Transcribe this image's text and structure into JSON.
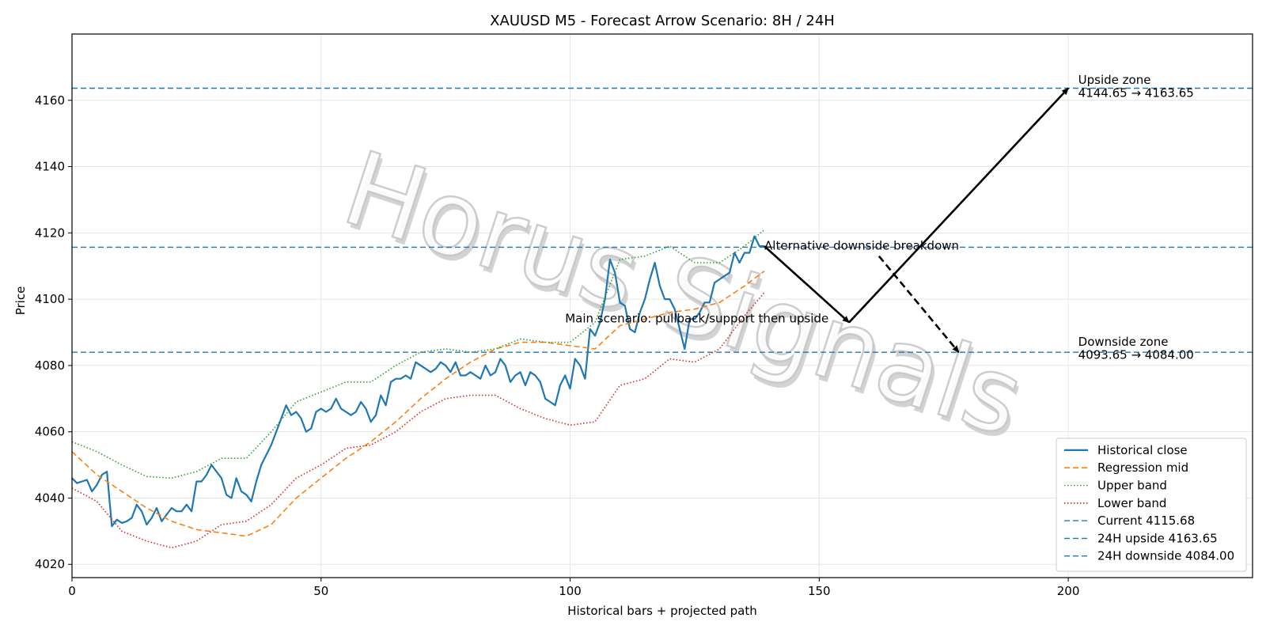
{
  "chart_data": {
    "type": "line",
    "title": "XAUUSD M5 - Forecast Arrow Scenario: 8H / 24H",
    "xlabel": "Historical bars + projected path",
    "ylabel": "Price",
    "xlim": [
      0,
      237
    ],
    "ylim": [
      4016,
      4180
    ],
    "x_ticks": [
      0,
      50,
      100,
      150,
      200
    ],
    "y_ticks": [
      4020,
      4040,
      4060,
      4080,
      4100,
      4120,
      4140,
      4160
    ],
    "grid": true,
    "legend_position": "lower-right",
    "series": [
      {
        "name": "Historical close",
        "style": "solid",
        "color": "#1f77b4",
        "x": [
          0,
          1,
          2,
          3,
          4,
          5,
          6,
          7,
          8,
          9,
          10,
          11,
          12,
          13,
          14,
          15,
          16,
          17,
          18,
          19,
          20,
          21,
          22,
          23,
          24,
          25,
          26,
          27,
          28,
          29,
          30,
          31,
          32,
          33,
          34,
          35,
          36,
          37,
          38,
          39,
          40,
          41,
          42,
          43,
          44,
          45,
          46,
          47,
          48,
          49,
          50,
          51,
          52,
          53,
          54,
          55,
          56,
          57,
          58,
          59,
          60,
          61,
          62,
          63,
          64,
          65,
          66,
          67,
          68,
          69,
          70,
          71,
          72,
          73,
          74,
          75,
          76,
          77,
          78,
          79,
          80,
          81,
          82,
          83,
          84,
          85,
          86,
          87,
          88,
          89,
          90,
          91,
          92,
          93,
          94,
          95,
          96,
          97,
          98,
          99,
          100,
          101,
          102,
          103,
          104,
          105,
          106,
          107,
          108,
          109,
          110,
          111,
          112,
          113,
          114,
          115,
          116,
          117,
          118,
          119,
          120,
          121,
          122,
          123,
          124,
          125,
          126,
          127,
          128,
          129,
          130,
          131,
          132,
          133,
          134,
          135,
          136,
          137,
          138,
          139
        ],
        "values": [
          4046,
          4044.5,
          4045,
          4045.5,
          4042,
          4044,
          4047,
          4048,
          4031.5,
          4033.5,
          4032.5,
          4033,
          4034,
          4038,
          4036,
          4032,
          4034,
          4037,
          4033,
          4035,
          4037,
          4036,
          4036,
          4038,
          4036,
          4045,
          4045,
          4047,
          4050,
          4048,
          4046,
          4041,
          4040,
          4046,
          4042,
          4041,
          4039,
          4045,
          4050,
          4053,
          4056,
          4060,
          4064,
          4068,
          4065,
          4066,
          4064,
          4060,
          4061,
          4066,
          4067,
          4066,
          4067,
          4070,
          4067,
          4066,
          4065,
          4066,
          4069,
          4067,
          4063,
          4065,
          4071,
          4068,
          4075,
          4076,
          4076,
          4077,
          4076,
          4081,
          4080,
          4079,
          4078,
          4079,
          4081,
          4080,
          4078,
          4081,
          4077,
          4077,
          4078,
          4077,
          4076,
          4080,
          4077,
          4078,
          4082,
          4080,
          4075,
          4077,
          4078,
          4074,
          4078,
          4077,
          4075,
          4070,
          4069,
          4068,
          4074,
          4077,
          4073,
          4082,
          4080,
          4076,
          4091,
          4089,
          4093,
          4100,
          4112,
          4108,
          4099,
          4098,
          4091,
          4090,
          4096,
          4100,
          4106,
          4111,
          4104,
          4100,
          4100,
          4097,
          4091,
          4085,
          4094,
          4094,
          4096,
          4099,
          4099,
          4105,
          4106,
          4107,
          4108,
          4114,
          4111,
          4114,
          4114,
          4119,
          4116,
          4116
        ]
      },
      {
        "name": "Regression mid",
        "style": "dashed",
        "color": "#ff7f0e",
        "x": [
          0,
          5,
          10,
          15,
          20,
          25,
          30,
          35,
          40,
          45,
          50,
          55,
          60,
          65,
          70,
          75,
          80,
          85,
          90,
          95,
          100,
          105,
          110,
          115,
          120,
          125,
          130,
          135,
          139
        ],
        "values": [
          4054,
          4047,
          4042,
          4037,
          4033,
          4030.5,
          4029.5,
          4028.5,
          4032,
          4040,
          4046,
          4052,
          4057,
          4063,
          4070,
          4076,
          4081,
          4085,
          4087,
          4087,
          4086,
          4085,
          4092,
          4094,
          4096,
          4097,
          4099,
          4104,
          4108.5
        ]
      },
      {
        "name": "Upper band",
        "style": "dotted",
        "color": "#2ca02c",
        "x": [
          0,
          5,
          10,
          15,
          20,
          25,
          30,
          35,
          40,
          45,
          50,
          55,
          60,
          65,
          70,
          75,
          80,
          85,
          90,
          95,
          100,
          105,
          110,
          115,
          120,
          125,
          130,
          135,
          139
        ],
        "values": [
          4057,
          4054,
          4050,
          4046.5,
          4046,
          4048,
          4052,
          4052,
          4060,
          4069,
          4072,
          4075,
          4075,
          4080,
          4084,
          4085,
          4084,
          4085,
          4088,
          4087,
          4087,
          4093,
          4112,
          4113,
          4116,
          4111,
          4111,
          4116,
          4121
        ]
      },
      {
        "name": "Lower band",
        "style": "dotted",
        "color": "#d62728",
        "x": [
          0,
          5,
          10,
          15,
          20,
          25,
          30,
          35,
          40,
          45,
          50,
          55,
          60,
          65,
          70,
          75,
          80,
          85,
          90,
          95,
          100,
          105,
          110,
          115,
          120,
          125,
          130,
          135,
          139
        ],
        "values": [
          4043,
          4039,
          4030,
          4027,
          4025,
          4027,
          4032,
          4033,
          4038,
          4046,
          4050,
          4055,
          4056,
          4060,
          4066,
          4070,
          4071,
          4071,
          4067,
          4064,
          4062,
          4063,
          4074,
          4076,
          4082,
          4081,
          4085,
          4095,
          4102
        ]
      }
    ],
    "hlines": [
      {
        "name": "Current 4115.68",
        "value": 4115.68,
        "color": "#1f77b4",
        "style": "dashed"
      },
      {
        "name": "24H upside 4163.65",
        "value": 4163.65,
        "color": "#1f77b4",
        "style": "dashed"
      },
      {
        "name": "24H downside 4084.00",
        "value": 4084.0,
        "color": "#1f77b4",
        "style": "dashed"
      }
    ],
    "arrows": [
      {
        "name": "main-pullback",
        "from": [
          139,
          4116
        ],
        "to": [
          156,
          4093
        ],
        "style": "solid"
      },
      {
        "name": "main-upside",
        "from": [
          156,
          4093
        ],
        "to": [
          200,
          4163.65
        ],
        "style": "solid"
      },
      {
        "name": "alt-downside",
        "from": [
          162,
          4113
        ],
        "to": [
          178,
          4084
        ],
        "style": "dashed"
      }
    ],
    "annotations": [
      {
        "text": "Alternative downside breakdown",
        "x": 139,
        "y": 4115
      },
      {
        "text": "Main scenario: pullback/support then upside",
        "x": 99,
        "y": 4093
      },
      {
        "text": "Upside zone",
        "x": 202,
        "y": 4165
      },
      {
        "text": "4144.65 → 4163.65",
        "x": 202,
        "y": 4161
      },
      {
        "text": "Downside zone",
        "x": 202,
        "y": 4086
      },
      {
        "text": "4093.65 → 4084.00",
        "x": 202,
        "y": 4082
      }
    ],
    "watermark": [
      "Horus",
      "Signals"
    ]
  }
}
